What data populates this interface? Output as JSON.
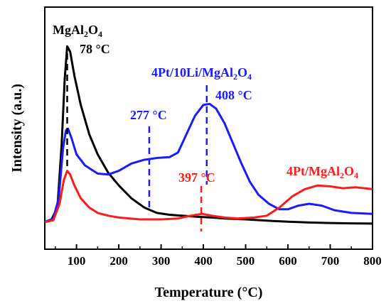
{
  "chart_data": {
    "type": "line",
    "xlabel": "Temperature (°C)",
    "ylabel": "Intensity (a.u.)",
    "xlim": [
      25,
      800
    ],
    "xticks": [
      100,
      200,
      300,
      400,
      500,
      600,
      700,
      800
    ],
    "yticks_labeled": false,
    "grid": false,
    "legend": "none",
    "series": [
      {
        "name": "MgAl2O4",
        "color": "#000000",
        "points": [
          [
            25,
            0.02
          ],
          [
            40,
            0.03
          ],
          [
            55,
            0.1
          ],
          [
            65,
            0.45
          ],
          [
            72,
            0.8
          ],
          [
            78,
            0.98
          ],
          [
            85,
            0.95
          ],
          [
            95,
            0.82
          ],
          [
            110,
            0.66
          ],
          [
            130,
            0.5
          ],
          [
            150,
            0.39
          ],
          [
            175,
            0.29
          ],
          [
            200,
            0.22
          ],
          [
            230,
            0.15
          ],
          [
            260,
            0.1
          ],
          [
            290,
            0.07
          ],
          [
            320,
            0.06
          ],
          [
            350,
            0.055
          ],
          [
            380,
            0.05
          ],
          [
            420,
            0.045
          ],
          [
            450,
            0.04
          ],
          [
            500,
            0.035
          ],
          [
            550,
            0.028
          ],
          [
            600,
            0.022
          ],
          [
            650,
            0.018
          ],
          [
            700,
            0.015
          ],
          [
            750,
            0.013
          ],
          [
            800,
            0.012
          ]
        ]
      },
      {
        "name": "4Pt/10Li/MgAl2O4",
        "color": "#1a1aff",
        "points": [
          [
            25,
            0.02
          ],
          [
            45,
            0.04
          ],
          [
            58,
            0.15
          ],
          [
            68,
            0.42
          ],
          [
            75,
            0.52
          ],
          [
            80,
            0.53
          ],
          [
            88,
            0.48
          ],
          [
            100,
            0.39
          ],
          [
            120,
            0.33
          ],
          [
            150,
            0.285
          ],
          [
            175,
            0.28
          ],
          [
            200,
            0.3
          ],
          [
            230,
            0.34
          ],
          [
            260,
            0.36
          ],
          [
            290,
            0.37
          ],
          [
            320,
            0.375
          ],
          [
            340,
            0.4
          ],
          [
            360,
            0.5
          ],
          [
            380,
            0.6
          ],
          [
            400,
            0.66
          ],
          [
            415,
            0.665
          ],
          [
            430,
            0.64
          ],
          [
            450,
            0.56
          ],
          [
            470,
            0.45
          ],
          [
            490,
            0.34
          ],
          [
            510,
            0.24
          ],
          [
            530,
            0.17
          ],
          [
            555,
            0.12
          ],
          [
            580,
            0.09
          ],
          [
            600,
            0.09
          ],
          [
            625,
            0.11
          ],
          [
            650,
            0.12
          ],
          [
            680,
            0.11
          ],
          [
            710,
            0.085
          ],
          [
            750,
            0.07
          ],
          [
            800,
            0.065
          ]
        ]
      },
      {
        "name": "4Pt/MgAl2O4",
        "color": "#ff1a1a",
        "points": [
          [
            25,
            0.02
          ],
          [
            45,
            0.03
          ],
          [
            60,
            0.12
          ],
          [
            70,
            0.25
          ],
          [
            78,
            0.3
          ],
          [
            85,
            0.28
          ],
          [
            95,
            0.22
          ],
          [
            110,
            0.15
          ],
          [
            130,
            0.1
          ],
          [
            150,
            0.07
          ],
          [
            175,
            0.055
          ],
          [
            200,
            0.045
          ],
          [
            250,
            0.035
          ],
          [
            300,
            0.035
          ],
          [
            340,
            0.04
          ],
          [
            370,
            0.055
          ],
          [
            397,
            0.065
          ],
          [
            420,
            0.055
          ],
          [
            450,
            0.045
          ],
          [
            480,
            0.04
          ],
          [
            520,
            0.045
          ],
          [
            550,
            0.055
          ],
          [
            580,
            0.1
          ],
          [
            610,
            0.16
          ],
          [
            640,
            0.2
          ],
          [
            670,
            0.22
          ],
          [
            700,
            0.215
          ],
          [
            730,
            0.205
          ],
          [
            760,
            0.21
          ],
          [
            800,
            0.2
          ]
        ]
      }
    ],
    "annotations": [
      {
        "id": "mgal-name",
        "color": "#000000",
        "base": "MgAl",
        "sub1": "2",
        "mid": "O",
        "sub2": "4",
        "tail": ""
      },
      {
        "id": "mgal-peak",
        "color": "#000000",
        "text": "78 °C",
        "marker_x": 78,
        "marker_y": 0.98
      },
      {
        "id": "li-name",
        "color": "#1a1aff",
        "base": "4Pt/10Li/MgAl",
        "sub1": "2",
        "mid": "O",
        "sub2": "4",
        "tail": ""
      },
      {
        "id": "li-peak-408",
        "color": "#1a1aff",
        "text": "408 °C",
        "marker_x": 408,
        "marker_y": 0.665
      },
      {
        "id": "li-peak-277",
        "color": "#1a1aff",
        "text": "277 °C",
        "marker_x": 272,
        "marker_y": 0.365
      },
      {
        "id": "pt-name",
        "color": "#ff1a1a",
        "base": "4Pt/MgAl",
        "sub1": "2",
        "mid": "O",
        "sub2": "4",
        "tail": ""
      },
      {
        "id": "pt-peak",
        "color": "#ff1a1a",
        "text": "397 °C",
        "marker_x": 395,
        "marker_y": 0.065
      }
    ]
  }
}
